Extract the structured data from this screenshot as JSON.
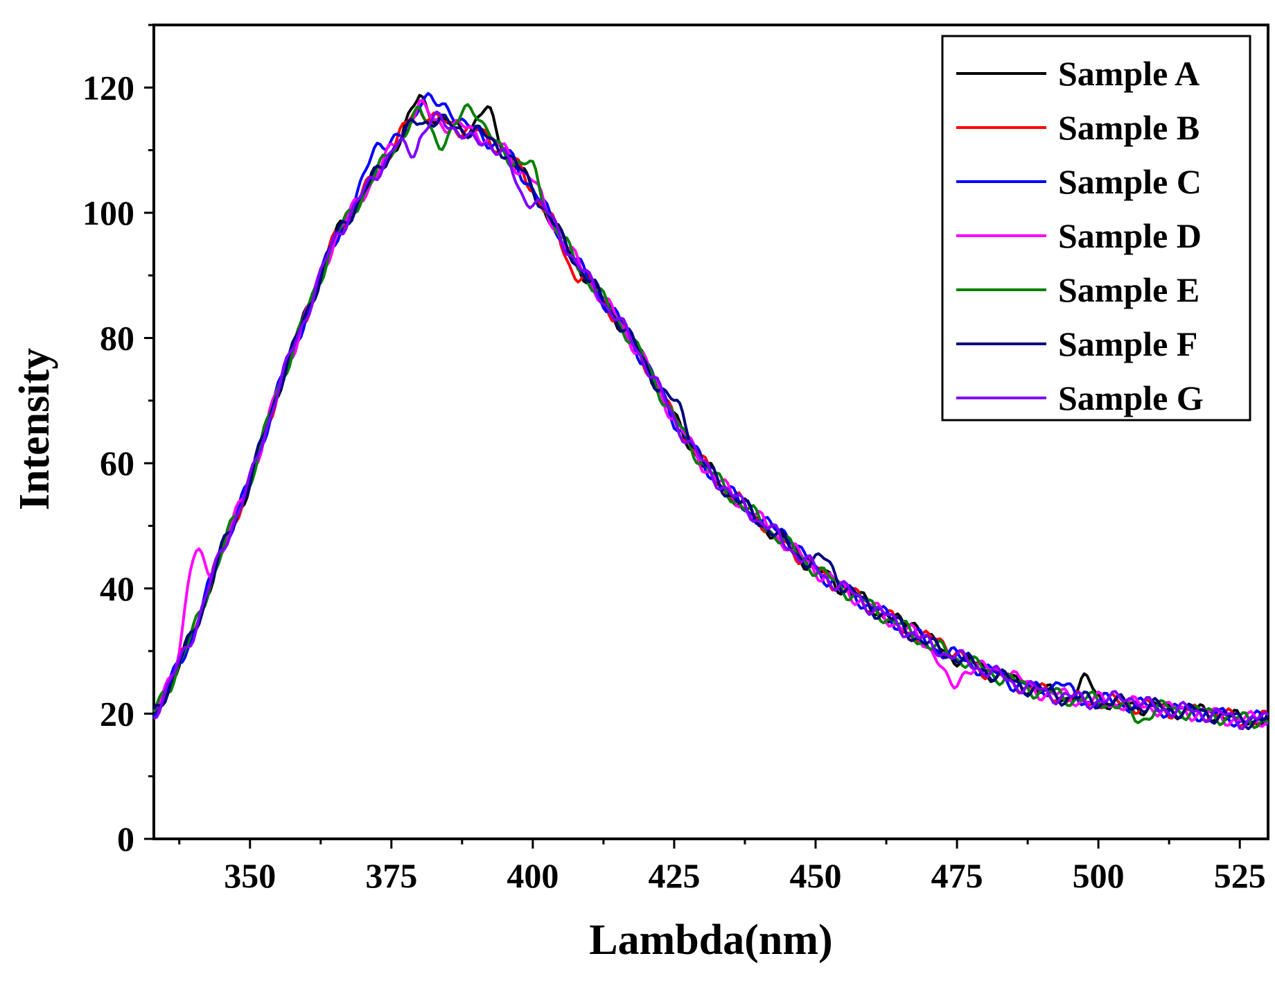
{
  "chart_data": {
    "type": "line",
    "xlabel": "Lambda(nm)",
    "ylabel": "Intensity",
    "xlim": [
      333,
      530
    ],
    "ylim": [
      0,
      130
    ],
    "xticks": [
      350,
      375,
      400,
      425,
      450,
      475,
      500,
      525
    ],
    "yticks": [
      0,
      20,
      40,
      60,
      80,
      100,
      120
    ],
    "legend_position": "top-right",
    "base_curve": [
      [
        333,
        20
      ],
      [
        336,
        25
      ],
      [
        340,
        33
      ],
      [
        345,
        46
      ],
      [
        350,
        57
      ],
      [
        355,
        72
      ],
      [
        360,
        84
      ],
      [
        365,
        96
      ],
      [
        370,
        103
      ],
      [
        375,
        110
      ],
      [
        380,
        116
      ],
      [
        385,
        114
      ],
      [
        390,
        113
      ],
      [
        395,
        110
      ],
      [
        400,
        104
      ],
      [
        405,
        96
      ],
      [
        410,
        89
      ],
      [
        415,
        83
      ],
      [
        420,
        76
      ],
      [
        425,
        67
      ],
      [
        430,
        60
      ],
      [
        435,
        55
      ],
      [
        440,
        51
      ],
      [
        445,
        47
      ],
      [
        450,
        43
      ],
      [
        455,
        40
      ],
      [
        460,
        37
      ],
      [
        465,
        34
      ],
      [
        470,
        31
      ],
      [
        475,
        29
      ],
      [
        480,
        27
      ],
      [
        485,
        25
      ],
      [
        490,
        23.5
      ],
      [
        495,
        22.5
      ],
      [
        500,
        22
      ],
      [
        505,
        21.5
      ],
      [
        510,
        21
      ],
      [
        515,
        20.5
      ],
      [
        520,
        20
      ],
      [
        525,
        19
      ],
      [
        530,
        19
      ]
    ],
    "series": [
      {
        "name": "Sample A",
        "color": "#000000",
        "anchors": [
          [
            380,
            118.5
          ],
          [
            392,
            116
          ],
          [
            399,
            105
          ],
          [
            468,
            34.5
          ],
          [
            498,
            25
          ]
        ]
      },
      {
        "name": "Sample B",
        "color": "#ff0000",
        "anchors": [
          [
            379,
            116
          ],
          [
            407,
            91
          ],
          [
            472,
            32
          ],
          [
            497,
            22
          ]
        ]
      },
      {
        "name": "Sample C",
        "color": "#0000ff",
        "anchors": [
          [
            372,
            111
          ],
          [
            381,
            118
          ],
          [
            385,
            117
          ],
          [
            445,
            49
          ],
          [
            493,
            25
          ]
        ]
      },
      {
        "name": "Sample D",
        "color": "#ff00ff",
        "anchors": [
          [
            340,
            45
          ],
          [
            379,
            116
          ],
          [
            400,
            105
          ],
          [
            474,
            24
          ],
          [
            484,
            27
          ]
        ]
      },
      {
        "name": "Sample E",
        "color": "#008000",
        "anchors": [
          [
            384,
            111
          ],
          [
            389,
            117.5
          ],
          [
            400,
            107
          ],
          [
            507,
            19
          ]
        ]
      },
      {
        "name": "Sample F",
        "color": "#000080",
        "anchors": [
          [
            380,
            115
          ],
          [
            395,
            110
          ],
          [
            426,
            69
          ],
          [
            452,
            44.5
          ]
        ]
      },
      {
        "name": "Sample G",
        "color": "#8000ff",
        "anchors": [
          [
            379,
            110
          ],
          [
            390,
            111
          ],
          [
            398,
            102.5
          ],
          [
            505,
            23
          ]
        ]
      }
    ]
  }
}
